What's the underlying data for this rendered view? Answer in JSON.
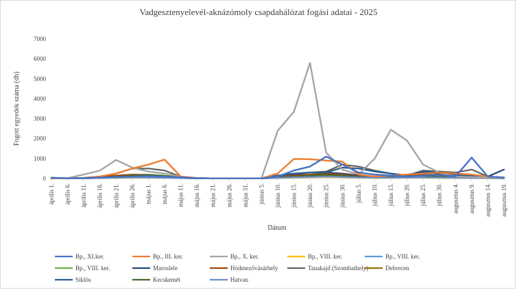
{
  "chart_data": {
    "type": "line",
    "title": "Vadgesztenyelevél-aknázómoly csapdahálózat fogási adatai - 2025",
    "xlabel": "Dátum",
    "ylabel": "Fogott egyedek száma (db)",
    "ylim": [
      0,
      7000
    ],
    "yticks": [
      0,
      1000,
      2000,
      3000,
      4000,
      5000,
      6000,
      7000
    ],
    "grid": false,
    "legend_position": "bottom",
    "categories": [
      "április 1.",
      "április 6.",
      "április 11.",
      "április 16.",
      "április 21.",
      "április 26.",
      "május 1.",
      "május 6.",
      "május 11.",
      "május 16.",
      "május 21.",
      "május 26.",
      "május 31.",
      "június 5.",
      "június 10.",
      "június 15.",
      "június 20.",
      "június 25.",
      "június 30.",
      "július 5.",
      "július 10.",
      "július 15.",
      "július 20.",
      "július 25.",
      "július 30.",
      "augusztus 4.",
      "augusztus 9.",
      "augusztus 14.",
      "augusztus 19."
    ],
    "series": [
      {
        "name": "Bp., XI.ker.",
        "color": "#4472c4",
        "values": [
          40,
          10,
          30,
          50,
          80,
          100,
          120,
          100,
          60,
          20,
          10,
          10,
          10,
          10,
          100,
          400,
          600,
          1100,
          700,
          300,
          200,
          150,
          100,
          150,
          200,
          100,
          1050,
          100,
          50
        ]
      },
      {
        "name": "Bp., III. ker.",
        "color": "#ed7d31",
        "values": [
          20,
          10,
          30,
          100,
          250,
          500,
          700,
          950,
          100,
          20,
          10,
          10,
          10,
          10,
          250,
          980,
          970,
          900,
          850,
          200,
          100,
          150,
          200,
          250,
          300,
          250,
          200,
          100,
          50
        ]
      },
      {
        "name": "Bp., X. ker.",
        "color": "#a5a5a5",
        "values": [
          30,
          20,
          200,
          400,
          930,
          550,
          350,
          250,
          100,
          30,
          10,
          10,
          10,
          10,
          2400,
          3350,
          5800,
          1300,
          450,
          200,
          1000,
          2450,
          1900,
          700,
          300,
          100,
          80,
          50,
          30
        ]
      },
      {
        "name": "Bp., VIII. ker.",
        "color": "#ffc000",
        "values": [
          10,
          5,
          10,
          20,
          30,
          40,
          40,
          30,
          20,
          10,
          5,
          5,
          5,
          5,
          20,
          40,
          60,
          80,
          60,
          40,
          30,
          30,
          40,
          40,
          30,
          20,
          20,
          10,
          10
        ]
      },
      {
        "name": "Bp., VIII. ker.",
        "color": "#5b9bd5",
        "values": [
          10,
          5,
          10,
          20,
          40,
          60,
          50,
          40,
          20,
          10,
          5,
          5,
          5,
          5,
          30,
          60,
          80,
          100,
          80,
          50,
          40,
          40,
          50,
          50,
          40,
          30,
          30,
          20,
          10
        ]
      },
      {
        "name": "Bp., VIII. ker.",
        "color": "#70ad47",
        "values": [
          10,
          5,
          20,
          50,
          100,
          180,
          200,
          150,
          60,
          20,
          5,
          5,
          5,
          5,
          50,
          100,
          150,
          200,
          120,
          60,
          50,
          60,
          80,
          80,
          60,
          40,
          30,
          20,
          10
        ]
      },
      {
        "name": "Maroslele",
        "color": "#264478",
        "values": [
          10,
          5,
          20,
          50,
          80,
          100,
          100,
          80,
          40,
          10,
          5,
          5,
          5,
          5,
          100,
          200,
          300,
          300,
          250,
          150,
          100,
          150,
          200,
          300,
          250,
          200,
          150,
          100,
          450
        ]
      },
      {
        "name": "Hódmezővásárhely",
        "color": "#9e480e",
        "values": [
          10,
          5,
          20,
          80,
          150,
          200,
          180,
          120,
          50,
          10,
          5,
          5,
          5,
          5,
          80,
          150,
          200,
          250,
          200,
          100,
          80,
          100,
          150,
          200,
          180,
          120,
          100,
          60,
          30
        ]
      },
      {
        "name": "Tanakajd (Szombathely)",
        "color": "#636363",
        "values": [
          10,
          5,
          30,
          100,
          250,
          500,
          500,
          400,
          100,
          20,
          5,
          5,
          5,
          5,
          150,
          250,
          300,
          350,
          700,
          600,
          400,
          250,
          150,
          400,
          350,
          300,
          450,
          100,
          50
        ]
      },
      {
        "name": "Debrecen",
        "color": "#997300",
        "values": [
          10,
          5,
          10,
          30,
          60,
          80,
          70,
          50,
          30,
          10,
          5,
          5,
          5,
          5,
          40,
          80,
          100,
          150,
          100,
          60,
          50,
          60,
          80,
          100,
          80,
          60,
          50,
          30,
          20
        ]
      },
      {
        "name": "Siklós",
        "color": "#255e91",
        "values": [
          10,
          5,
          10,
          30,
          50,
          70,
          60,
          40,
          20,
          10,
          5,
          5,
          5,
          5,
          150,
          250,
          300,
          300,
          550,
          500,
          350,
          250,
          150,
          350,
          300,
          200,
          150,
          100,
          50
        ]
      },
      {
        "name": "Kecskemét",
        "color": "#43682b",
        "values": [
          10,
          5,
          10,
          30,
          80,
          150,
          170,
          120,
          50,
          10,
          5,
          5,
          5,
          5,
          50,
          100,
          150,
          200,
          150,
          80,
          60,
          80,
          100,
          120,
          100,
          80,
          60,
          40,
          20
        ]
      },
      {
        "name": "Hatvan",
        "color": "#698ed0",
        "values": [
          10,
          5,
          10,
          20,
          40,
          60,
          50,
          40,
          20,
          10,
          5,
          5,
          5,
          5,
          30,
          60,
          80,
          100,
          80,
          50,
          40,
          40,
          50,
          60,
          50,
          40,
          30,
          20,
          10
        ]
      }
    ]
  }
}
